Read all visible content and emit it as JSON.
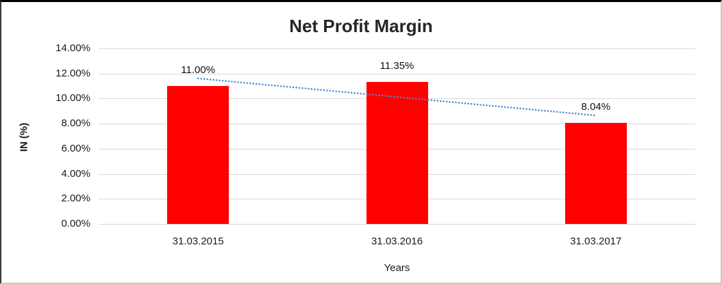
{
  "window": {
    "background": "#ffffff",
    "frame_top_color": "#000000",
    "frame_side_color": "#3a3a3a",
    "frame_light_color": "#c9c9c9"
  },
  "chart_data": {
    "type": "bar",
    "title": "Net Profit Margin",
    "categories": [
      "31.03.2015",
      "31.03.2016",
      "31.03.2017"
    ],
    "values": [
      11.0,
      11.35,
      8.04
    ],
    "data_labels": [
      "11.00%",
      "11.35%",
      "8.04%"
    ],
    "xlabel": "Years",
    "ylabel": "IN (%)",
    "ylim": [
      0,
      14
    ],
    "ytick_step": 2,
    "ytick_labels": [
      "14.00%",
      "12.00%",
      "10.00%",
      "8.00%",
      "6.00%",
      "4.00%",
      "2.00%",
      "0.00%"
    ],
    "bar_color": "#ff0000",
    "gridline_color": "#d8d8d8",
    "text_color": "#1a1a1a",
    "grid": true,
    "legend": "none",
    "trendline": {
      "type": "linear",
      "style": "dotted",
      "color": "#4e88c8"
    }
  }
}
